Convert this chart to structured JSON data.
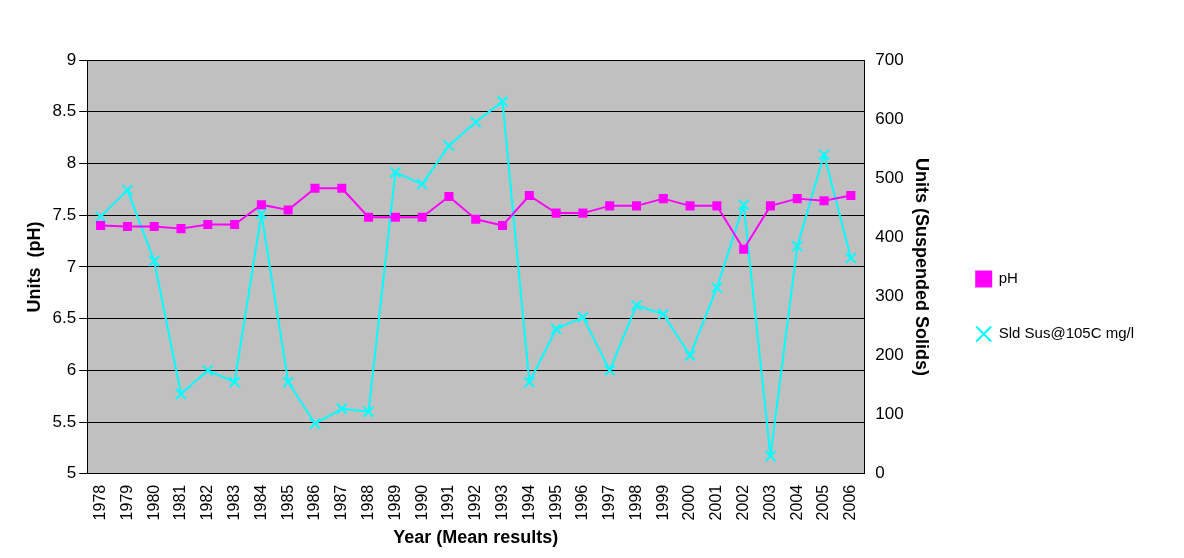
{
  "chart_data": {
    "type": "line",
    "categories": [
      "1978",
      "1979",
      "1980",
      "1981",
      "1982",
      "1983",
      "1984",
      "1985",
      "1986",
      "1987",
      "1988",
      "1989",
      "1990",
      "1991",
      "1992",
      "1993",
      "1994",
      "1995",
      "1996",
      "1997",
      "1998",
      "1999",
      "2000",
      "2001",
      "2002",
      "2003",
      "2004",
      "2005",
      "2006"
    ],
    "series": [
      {
        "name": "pH",
        "color": "#ff00ff",
        "marker": "square",
        "values": [
          7.4,
          7.39,
          7.39,
          7.37,
          7.41,
          7.41,
          7.6,
          7.55,
          7.76,
          7.76,
          7.48,
          7.48,
          7.48,
          7.68,
          7.46,
          7.4,
          7.69,
          7.52,
          7.52,
          7.59,
          7.59,
          7.66,
          7.59,
          7.59,
          7.17,
          7.59,
          7.66,
          7.64,
          7.69
        ]
      },
      {
        "name": "Sld Sus@105C mg/l",
        "color": "#00ffff",
        "marker": "cross",
        "axis": "y2",
        "values": [
          435,
          480,
          360,
          135,
          175,
          155,
          440,
          155,
          85,
          110,
          105,
          510,
          490,
          555,
          595,
          630,
          155,
          245,
          265,
          175,
          285,
          270,
          200,
          315,
          455,
          30,
          385,
          540,
          365
        ]
      }
    ],
    "xlabel": "Year (Mean results)",
    "ylabel": "Units  (pH)",
    "y2label": "Units (Suspended Solids)",
    "ylim": [
      5,
      9
    ],
    "yticks": [
      5,
      5.5,
      6,
      6.5,
      7,
      7.5,
      8,
      8.5,
      9
    ],
    "y2lim": [
      0,
      700
    ],
    "y2ticks": [
      0,
      100,
      200,
      300,
      400,
      500,
      600,
      700
    ],
    "grid": "y",
    "legend": "right",
    "line_style": "solid"
  }
}
